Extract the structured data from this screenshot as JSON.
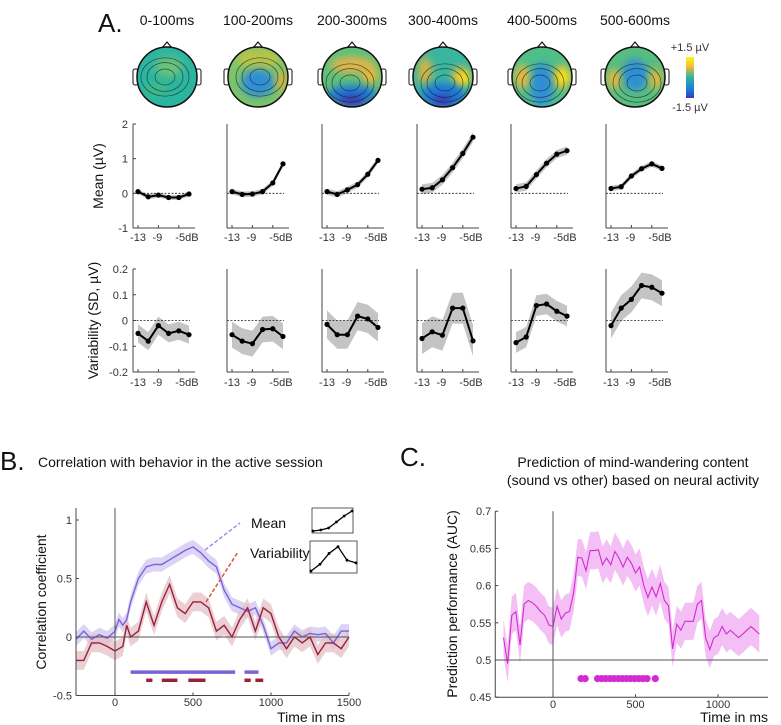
{
  "panel_labels": {
    "a": "A.",
    "b": "B.",
    "c": "C."
  },
  "panel_a": {
    "time_windows": [
      "0-100ms",
      "100-200ms",
      "200-300ms",
      "300-400ms",
      "400-500ms",
      "500-600ms"
    ],
    "colorbar": {
      "max_label": "+1.5 µV",
      "min_label": "-1.5 µV",
      "colors": [
        "#f9fb0e",
        "#f0b83a",
        "#2bb5a0",
        "#1f77d8",
        "#3a3ab0"
      ]
    },
    "x_tick_labels": [
      "-13",
      "-9",
      "-5dB"
    ]
  },
  "chart_data": [
    {
      "type": "line",
      "id": "mean",
      "title": "",
      "ylabel": "Mean  (µV)",
      "yticks": [
        "2",
        "1",
        "0",
        "-1"
      ],
      "ylim": [
        -1,
        2
      ],
      "x": [
        -13,
        -11,
        -9,
        -7,
        -5,
        -3
      ],
      "xlabel": "dB",
      "series": [
        {
          "name": "0-100ms",
          "values": [
            0.05,
            -0.1,
            -0.05,
            -0.12,
            -0.12,
            -0.02
          ],
          "band": 0.07
        },
        {
          "name": "100-200ms",
          "values": [
            0.05,
            -0.03,
            -0.02,
            0.05,
            0.3,
            0.85
          ],
          "band": 0.08
        },
        {
          "name": "200-300ms",
          "values": [
            0.05,
            -0.03,
            0.1,
            0.25,
            0.55,
            0.95
          ],
          "band": 0.09
        },
        {
          "name": "300-400ms",
          "values": [
            0.12,
            0.16,
            0.39,
            0.74,
            1.15,
            1.62
          ],
          "band": 0.14
        },
        {
          "name": "400-500ms",
          "values": [
            0.14,
            0.2,
            0.54,
            0.87,
            1.13,
            1.23
          ],
          "band": 0.12
        },
        {
          "name": "500-600ms",
          "values": [
            0.14,
            0.19,
            0.5,
            0.71,
            0.85,
            0.72
          ],
          "band": 0.08
        }
      ]
    },
    {
      "type": "line",
      "id": "variability",
      "ylabel": "Variability (SD, µV)",
      "yticks": [
        "0.2",
        "0.1",
        "0",
        "-0.1",
        "-0.2"
      ],
      "ylim": [
        -0.2,
        0.2
      ],
      "x": [
        -13,
        -11,
        -9,
        -7,
        -5,
        -3
      ],
      "xlabel": "dB",
      "series": [
        {
          "name": "0-100ms",
          "values": [
            -0.05,
            -0.08,
            -0.02,
            -0.05,
            -0.04,
            -0.055
          ],
          "band": 0.035
        },
        {
          "name": "100-200ms",
          "values": [
            -0.055,
            -0.08,
            -0.09,
            -0.035,
            -0.032,
            -0.062
          ],
          "band": 0.05
        },
        {
          "name": "200-300ms",
          "values": [
            -0.015,
            -0.055,
            -0.055,
            0.017,
            0.006,
            -0.027
          ],
          "band": 0.055
        },
        {
          "name": "300-400ms",
          "values": [
            -0.07,
            -0.044,
            -0.057,
            0.048,
            0.048,
            -0.079
          ],
          "band": 0.06
        },
        {
          "name": "400-500ms",
          "values": [
            -0.086,
            -0.064,
            0.058,
            0.064,
            0.036,
            0.017
          ],
          "band": 0.04
        },
        {
          "name": "500-600ms",
          "values": [
            -0.02,
            0.048,
            0.082,
            0.136,
            0.129,
            0.106
          ],
          "band": 0.05
        }
      ]
    },
    {
      "type": "line",
      "id": "correlation",
      "title": "Correlation with behavior in the active session",
      "xlabel": "Time in ms",
      "ylabel": "Correlation coefficient",
      "xticks": [
        "0",
        "500",
        "1000",
        "1500"
      ],
      "yticks": [
        "1",
        "0.5",
        "0",
        "-0.5"
      ],
      "xlim": [
        -250,
        1500
      ],
      "ylim": [
        -0.5,
        1.1
      ],
      "legend": [
        "Mean",
        "Variability"
      ],
      "x": [
        -250,
        -200,
        -150,
        -100,
        -50,
        0,
        25,
        50,
        75,
        100,
        150,
        200,
        250,
        300,
        350,
        400,
        450,
        500,
        550,
        600,
        650,
        700,
        750,
        800,
        850,
        900,
        950,
        1000,
        1050,
        1100,
        1150,
        1200,
        1250,
        1300,
        1350,
        1400,
        1450,
        1500
      ],
      "series": [
        {
          "name": "Mean",
          "color": "#7a63d8",
          "band_color": "#cfc6f2",
          "band": 0.06,
          "values": [
            -0.02,
            0.05,
            -0.02,
            0.02,
            -0.01,
            0.05,
            0.15,
            0.1,
            0.15,
            0.3,
            0.5,
            0.6,
            0.62,
            0.62,
            0.66,
            0.7,
            0.74,
            0.77,
            0.72,
            0.65,
            0.6,
            0.4,
            0.28,
            0.25,
            0.22,
            0.25,
            0.1,
            -0.1,
            -0.05,
            -0.05,
            0.05,
            0.0,
            0.03,
            0.02,
            0.03,
            -0.05,
            0.05,
            0.05
          ],
          "significant": [
            [
              100,
              770
            ],
            [
              830,
              920
            ]
          ]
        },
        {
          "name": "Variability",
          "color": "#9a1f3a",
          "band_color": "#e3c0c6",
          "band": 0.08,
          "values": [
            -0.2,
            -0.2,
            -0.05,
            -0.05,
            -0.08,
            -0.12,
            -0.1,
            -0.08,
            0.1,
            0.0,
            0.05,
            0.3,
            0.1,
            0.3,
            0.45,
            0.25,
            0.2,
            0.3,
            0.3,
            0.25,
            0.05,
            0.1,
            0.0,
            0.15,
            0.25,
            0.05,
            0.25,
            0.2,
            0.0,
            -0.1,
            0.0,
            -0.05,
            0.0,
            -0.15,
            -0.05,
            -0.05,
            -0.1,
            0.0
          ],
          "significant": [
            [
              200,
              240
            ],
            [
              300,
              400
            ],
            [
              470,
              580
            ],
            [
              830,
              870
            ],
            [
              900,
              950
            ]
          ]
        }
      ],
      "insets": {
        "Mean": [
          0,
          0.05,
          0.15,
          0.45,
          0.75,
          1.0
        ],
        "Variability": [
          0,
          0.25,
          0.65,
          0.9,
          0.4,
          0.3
        ]
      }
    },
    {
      "type": "line",
      "id": "prediction",
      "title": [
        "Prediction of mind-wandering content",
        "(sound vs other) based on neural activity"
      ],
      "xlabel": "Time in ms",
      "ylabel": "Prediction performance (AUC)",
      "xticks": [
        "0",
        "500",
        "1000"
      ],
      "yticks": [
        "0.7",
        "0.65",
        "0.6",
        "0.55",
        "0.5",
        "0.45"
      ],
      "xlim": [
        -350,
        1300
      ],
      "ylim": [
        0.45,
        0.7
      ],
      "color": "#d42ad4",
      "band_color": "#f2b4f2",
      "band": 0.025,
      "x": [
        -300,
        -275,
        -250,
        -225,
        -200,
        -175,
        -150,
        -125,
        -100,
        -75,
        -50,
        -25,
        0,
        25,
        50,
        75,
        100,
        125,
        150,
        175,
        200,
        225,
        250,
        275,
        300,
        325,
        350,
        375,
        400,
        425,
        450,
        475,
        500,
        525,
        550,
        575,
        600,
        625,
        650,
        675,
        700,
        725,
        750,
        775,
        800,
        825,
        850,
        875,
        900,
        925,
        950,
        975,
        1000,
        1025,
        1050,
        1075,
        1100,
        1125,
        1150,
        1175,
        1200,
        1225,
        1250
      ],
      "values": [
        0.53,
        0.495,
        0.56,
        0.565,
        0.52,
        0.575,
        0.58,
        0.577,
        0.572,
        0.565,
        0.56,
        0.547,
        0.545,
        0.572,
        0.555,
        0.563,
        0.565,
        0.59,
        0.638,
        0.637,
        0.62,
        0.647,
        0.647,
        0.648,
        0.628,
        0.637,
        0.628,
        0.646,
        0.637,
        0.625,
        0.638,
        0.63,
        0.617,
        0.625,
        0.6,
        0.584,
        0.598,
        0.585,
        0.603,
        0.58,
        0.573,
        0.515,
        0.548,
        0.54,
        0.552,
        0.552,
        0.552,
        0.575,
        0.58,
        0.53,
        0.514,
        0.53,
        0.533,
        0.545,
        0.535,
        0.54,
        0.535,
        0.53,
        0.535,
        0.54,
        0.545,
        0.54,
        0.535
      ],
      "significant_times": [
        170,
        195,
        270,
        295,
        320,
        345,
        370,
        395,
        420,
        445,
        470,
        495,
        520,
        545,
        570,
        620
      ],
      "significance_level": 0.475
    }
  ]
}
